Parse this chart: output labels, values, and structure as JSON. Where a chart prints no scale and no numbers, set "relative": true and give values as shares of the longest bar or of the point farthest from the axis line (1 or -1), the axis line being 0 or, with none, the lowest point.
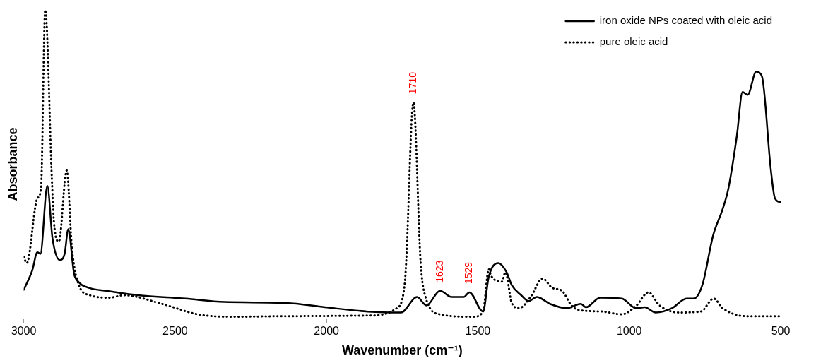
{
  "chart_data": {
    "type": "line",
    "xlabel": "Wavenumber (cm⁻¹)",
    "ylabel": "Absorbance",
    "relative": true,
    "xlim": [
      3000,
      500
    ],
    "xticks": [
      3000,
      2500,
      2000,
      1500,
      1000,
      500
    ],
    "legend": "top right",
    "grid": false,
    "marker": "none",
    "series": [
      {
        "name": "iron oxide NPs coated with oleic acid",
        "color": "#000000",
        "line_style": "solid",
        "x": [
          3000,
          2972,
          2955,
          2945,
          2922,
          2905,
          2881,
          2865,
          2853,
          2834,
          2822,
          2782,
          2727,
          2622,
          2466,
          2338,
          2133,
          2005,
          1863,
          1754,
          1701,
          1670,
          1625,
          1587,
          1547,
          1528,
          1483,
          1464,
          1433,
          1405,
          1388,
          1357,
          1333,
          1305,
          1262,
          1207,
          1160,
          1143,
          1096,
          1025,
          977,
          949,
          913,
          859,
          811,
          787,
          759,
          723,
          692,
          673,
          645,
          626,
          609,
          581,
          562,
          533,
          519,
          500
        ],
        "values": [
          0.093,
          0.156,
          0.215,
          0.21,
          0.43,
          0.26,
          0.19,
          0.21,
          0.29,
          0.147,
          0.122,
          0.099,
          0.09,
          0.076,
          0.065,
          0.054,
          0.051,
          0.037,
          0.023,
          0.02,
          0.07,
          0.043,
          0.09,
          0.07,
          0.07,
          0.085,
          0.023,
          0.136,
          0.18,
          0.15,
          0.108,
          0.076,
          0.057,
          0.07,
          0.048,
          0.034,
          0.048,
          0.037,
          0.068,
          0.065,
          0.034,
          0.037,
          0.02,
          0.034,
          0.065,
          0.065,
          0.108,
          0.27,
          0.354,
          0.42,
          0.59,
          0.734,
          0.725,
          0.8,
          0.785,
          0.487,
          0.39,
          0.377
        ]
      },
      {
        "name": "pure oleic acid",
        "color": "#000000",
        "line_style": "dotted",
        "x": [
          3000,
          2990,
          2955,
          2943,
          2929,
          2907,
          2900,
          2884,
          2858,
          2841,
          2822,
          2782,
          2717,
          2670,
          2544,
          2425,
          2314,
          2133,
          1863,
          1768,
          1742,
          1737,
          1713,
          1689,
          1673,
          1625,
          1516,
          1483,
          1464,
          1457,
          1421,
          1409,
          1388,
          1364,
          1326,
          1286,
          1255,
          1222,
          1191,
          1167,
          1089,
          1025,
          977,
          937,
          899,
          835,
          764,
          721,
          692,
          614,
          500
        ],
        "values": [
          0.2,
          0.18,
          0.39,
          0.42,
          1.0,
          0.45,
          0.31,
          0.25,
          0.48,
          0.23,
          0.12,
          0.076,
          0.068,
          0.076,
          0.048,
          0.014,
          0.006,
          0.008,
          0.01,
          0.034,
          0.11,
          0.18,
          0.7,
          0.18,
          0.07,
          0.014,
          0.006,
          0.023,
          0.16,
          0.14,
          0.12,
          0.15,
          0.05,
          0.034,
          0.07,
          0.13,
          0.1,
          0.09,
          0.043,
          0.028,
          0.023,
          0.014,
          0.042,
          0.085,
          0.042,
          0.02,
          0.023,
          0.065,
          0.034,
          0.008,
          0.008
        ]
      }
    ],
    "annotations": [
      {
        "text": "1710",
        "x": 1713,
        "y": 0.7
      },
      {
        "text": "1623",
        "x": 1625,
        "y": 0.09
      },
      {
        "text": "1529",
        "x": 1528,
        "y": 0.085
      }
    ]
  }
}
